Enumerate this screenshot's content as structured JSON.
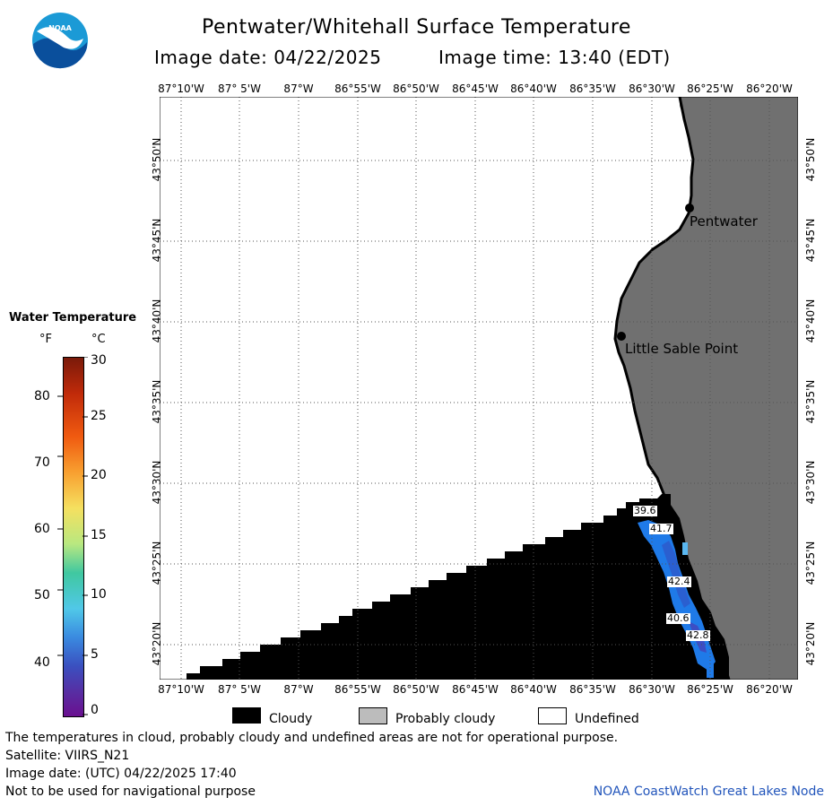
{
  "header": {
    "title": "Pentwater/Whitehall Surface Temperature",
    "image_date": "Image date: 04/22/2025",
    "image_time": "Image time: 13:40 (EDT)"
  },
  "map": {
    "lon_labels": [
      "87°10'W",
      "87° 5'W",
      "87°W",
      "86°55'W",
      "86°50'W",
      "86°45'W",
      "86°40'W",
      "86°35'W",
      "86°30'W",
      "86°25'W",
      "86°20'W"
    ],
    "lat_labels": [
      "43°50'N",
      "43°45'N",
      "43°40'N",
      "43°35'N",
      "43°30'N",
      "43°25'N",
      "43°20'N"
    ],
    "places": [
      {
        "name": "Pentwater"
      },
      {
        "name": "Little Sable Point"
      }
    ],
    "temp_labels": [
      "39.6",
      "41.7",
      "42.4",
      "40.6",
      "42.8"
    ],
    "colors": {
      "land": "#707070",
      "cloud": "#000000",
      "water_undefined": "#ffffff",
      "coastline": "#000000"
    }
  },
  "scale": {
    "title": "Water Temperature",
    "unit_f": "°F",
    "unit_c": "°C",
    "f_ticks": [
      "80",
      "70",
      "60",
      "50",
      "40"
    ],
    "c_ticks": [
      "30",
      "25",
      "20",
      "15",
      "10",
      "5",
      "0"
    ]
  },
  "legend": {
    "cloudy": "Cloudy",
    "probably_cloudy": "Probably cloudy",
    "undefined": "Undefined"
  },
  "footer": {
    "line1": "The temperatures in cloud, probably cloudy and undefined areas are not for operational purpose.",
    "line2": "Satellite: VIIRS_N21",
    "line3": "Image date: (UTC) 04/22/2025  17:40",
    "line4": "Not to be used for navigational purpose",
    "credit": "NOAA CoastWatch Great Lakes Node"
  },
  "logo": {
    "text": "NOAA"
  }
}
